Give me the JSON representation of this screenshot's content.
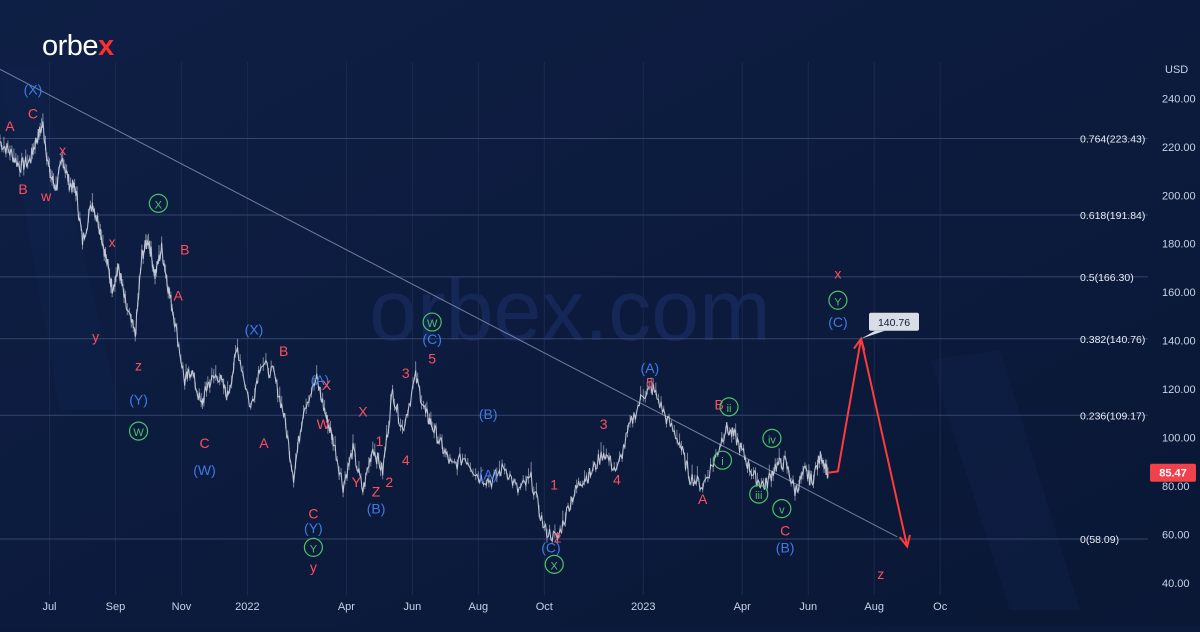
{
  "brand": {
    "logo_text": "orbe",
    "logo_accent": "x",
    "watermark": "orbex.com"
  },
  "chart_data": {
    "type": "line",
    "instrument_unit": "USD",
    "ylim": [
      35,
      255
    ],
    "xlim": [
      0,
      34.8
    ],
    "y_ticks": [
      40,
      60,
      80,
      100,
      120,
      140,
      160,
      180,
      200,
      220,
      240
    ],
    "y_tick_labels": [
      "40.00",
      "60.00",
      "80.00",
      "100.00",
      "120.00",
      "140.00",
      "160.00",
      "180.00",
      "200.00",
      "220.00",
      "240.00"
    ],
    "x_ticks": [
      {
        "label": "Jul",
        "t": 1.5
      },
      {
        "label": "Sep",
        "t": 3.5
      },
      {
        "label": "Nov",
        "t": 5.5
      },
      {
        "label": "2022",
        "t": 7.5
      },
      {
        "label": "Apr",
        "t": 10.5
      },
      {
        "label": "Jun",
        "t": 12.5
      },
      {
        "label": "Aug",
        "t": 14.5
      },
      {
        "label": "Oct",
        "t": 16.5
      },
      {
        "label": "2023",
        "t": 19.5
      },
      {
        "label": "Apr",
        "t": 22.5
      },
      {
        "label": "Jun",
        "t": 24.5
      },
      {
        "label": "Aug",
        "t": 26.5
      },
      {
        "label": "Oc",
        "t": 28.5
      }
    ],
    "price_series": {
      "name": "",
      "t": [
        0,
        0.3,
        0.6,
        0.9,
        1.1,
        1.3,
        1.5,
        1.7,
        1.9,
        2.1,
        2.3,
        2.5,
        2.8,
        3.0,
        3.2,
        3.4,
        3.6,
        3.8,
        4.1,
        4.3,
        4.5,
        4.7,
        4.9,
        5.1,
        5.3,
        5.6,
        5.8,
        6.1,
        6.3,
        6.6,
        6.9,
        7.2,
        7.6,
        7.9,
        8.3,
        8.6,
        8.9,
        9.2,
        9.6,
        9.9,
        10.1,
        10.4,
        10.7,
        11.0,
        11.3,
        11.6,
        11.9,
        12.2,
        12.6,
        12.9,
        13.1,
        13.4,
        13.7,
        14.1,
        14.5,
        14.9,
        15.3,
        15.7,
        16.1,
        16.5,
        16.9,
        17.3,
        17.6,
        17.9,
        18.3,
        18.7,
        19.1,
        19.5,
        19.8,
        20.2,
        20.6,
        20.9,
        21.3,
        21.7,
        22.0,
        22.3,
        22.6,
        22.9,
        23.2,
        23.5,
        23.8,
        24.1,
        24.4,
        24.6,
        24.9,
        25.1
      ],
      "y": [
        222,
        218,
        212,
        214,
        223,
        229,
        209,
        203,
        215,
        205,
        202,
        181,
        197,
        188,
        175,
        162,
        170,
        155,
        142,
        175,
        182,
        167,
        178,
        162,
        148,
        123,
        128,
        113,
        122,
        126,
        117,
        137,
        112,
        131,
        126,
        110,
        84,
        112,
        124,
        108,
        99,
        80,
        95,
        78,
        96,
        86,
        119,
        103,
        125,
        110,
        105,
        96,
        88,
        92,
        84,
        82,
        88,
        78,
        83,
        62,
        58,
        74,
        82,
        85,
        94,
        86,
        105,
        118,
        120,
        108,
        98,
        84,
        80,
        92,
        104,
        100,
        91,
        83,
        80,
        88,
        90,
        78,
        86,
        82,
        93,
        85
      ]
    },
    "projection": {
      "t": [
        25.1,
        25.4,
        26.1,
        27.5
      ],
      "y": [
        85.47,
        86,
        140.76,
        55
      ],
      "color": "#ff3b3b"
    },
    "trendline": {
      "t": [
        0,
        27.2
      ],
      "y": [
        252,
        59
      ],
      "color": "#9aa7c3"
    },
    "fib_levels": [
      {
        "label": "0.764(223.43)",
        "y": 223.43
      },
      {
        "label": "0.618(191.84)",
        "y": 191.84
      },
      {
        "label": "0.5(166.30)",
        "y": 166.3
      },
      {
        "label": "0.382(140.76)",
        "y": 140.76
      },
      {
        "label": "0.236(109.17)",
        "y": 109.17
      },
      {
        "label": "0(58.09)",
        "y": 58.09
      }
    ],
    "price_tags": [
      {
        "label": "85.47",
        "y": 85.47,
        "style": "price",
        "color": "#f0414c"
      },
      {
        "label": "140.76",
        "y": 140.76,
        "style": "callout",
        "color": "#d9dde6"
      }
    ],
    "wave_labels": [
      {
        "text": "(X)",
        "t": 1.0,
        "y": 242,
        "color": "#3d7be8",
        "circle": false
      },
      {
        "text": "A",
        "t": 0.3,
        "y": 227,
        "color": "#ff4f5e",
        "circle": false
      },
      {
        "text": "C",
        "t": 1.0,
        "y": 232,
        "color": "#ff4f5e",
        "circle": false
      },
      {
        "text": "x",
        "t": 1.9,
        "y": 217,
        "color": "#ff4f5e",
        "circle": false
      },
      {
        "text": "B",
        "t": 0.7,
        "y": 201,
        "color": "#ff4f5e",
        "circle": false
      },
      {
        "text": "w",
        "t": 1.4,
        "y": 198,
        "color": "#ff4f5e",
        "circle": false
      },
      {
        "text": "x",
        "t": 3.4,
        "y": 179,
        "color": "#ff4f5e",
        "circle": false
      },
      {
        "text": "X",
        "t": 4.8,
        "y": 195,
        "color": "#4ec26a",
        "circle": true
      },
      {
        "text": "B",
        "t": 5.6,
        "y": 176,
        "color": "#ff4f5e",
        "circle": false
      },
      {
        "text": "A",
        "t": 5.4,
        "y": 157,
        "color": "#ff4f5e",
        "circle": false
      },
      {
        "text": "y",
        "t": 2.9,
        "y": 140,
        "color": "#ff4f5e",
        "circle": false
      },
      {
        "text": "z",
        "t": 4.2,
        "y": 128,
        "color": "#ff4f5e",
        "circle": false
      },
      {
        "text": "(Y)",
        "t": 4.2,
        "y": 114,
        "color": "#3d7be8",
        "circle": false
      },
      {
        "text": "W",
        "t": 4.2,
        "y": 101,
        "color": "#4ec26a",
        "circle": true
      },
      {
        "text": "(X)",
        "t": 7.7,
        "y": 143,
        "color": "#3d7be8",
        "circle": false
      },
      {
        "text": "B",
        "t": 8.6,
        "y": 134,
        "color": "#ff4f5e",
        "circle": false
      },
      {
        "text": "C",
        "t": 6.2,
        "y": 96,
        "color": "#ff4f5e",
        "circle": false
      },
      {
        "text": "(W)",
        "t": 6.2,
        "y": 85,
        "color": "#3d7be8",
        "circle": false
      },
      {
        "text": "A",
        "t": 8.0,
        "y": 96,
        "color": "#ff4f5e",
        "circle": false
      },
      {
        "text": "(A)",
        "t": 9.7,
        "y": 122,
        "color": "#3d7be8",
        "circle": false
      },
      {
        "text": "X",
        "t": 9.9,
        "y": 120,
        "color": "#ff4f5e",
        "circle": false
      },
      {
        "text": "W",
        "t": 9.8,
        "y": 104,
        "color": "#ff4f5e",
        "circle": false
      },
      {
        "text": "X",
        "t": 11.0,
        "y": 109,
        "color": "#ff4f5e",
        "circle": false
      },
      {
        "text": "1",
        "t": 11.5,
        "y": 97,
        "color": "#ff4f5e",
        "circle": false
      },
      {
        "text": "Y",
        "t": 10.8,
        "y": 80,
        "color": "#ff4f5e",
        "circle": false
      },
      {
        "text": "Z",
        "t": 11.4,
        "y": 76,
        "color": "#ff4f5e",
        "circle": false
      },
      {
        "text": "2",
        "t": 11.8,
        "y": 80,
        "color": "#ff4f5e",
        "circle": false
      },
      {
        "text": "(B)",
        "t": 11.4,
        "y": 69,
        "color": "#3d7be8",
        "circle": false
      },
      {
        "text": "4",
        "t": 12.3,
        "y": 89,
        "color": "#ff4f5e",
        "circle": false
      },
      {
        "text": "3",
        "t": 12.3,
        "y": 125,
        "color": "#ff4f5e",
        "circle": false
      },
      {
        "text": "W",
        "t": 13.1,
        "y": 146,
        "color": "#4ec26a",
        "circle": true
      },
      {
        "text": "(C)",
        "t": 13.1,
        "y": 139,
        "color": "#3d7be8",
        "circle": false
      },
      {
        "text": "5",
        "t": 13.1,
        "y": 131,
        "color": "#ff4f5e",
        "circle": false
      },
      {
        "text": "(B)",
        "t": 14.8,
        "y": 108,
        "color": "#3d7be8",
        "circle": false
      },
      {
        "text": "(A)",
        "t": 14.8,
        "y": 83,
        "color": "#3d7be8",
        "circle": false
      },
      {
        "text": "1",
        "t": 16.8,
        "y": 79,
        "color": "#ff4f5e",
        "circle": false
      },
      {
        "text": "C",
        "t": 9.5,
        "y": 67,
        "color": "#ff4f5e",
        "circle": false
      },
      {
        "text": "(Y)",
        "t": 9.5,
        "y": 61,
        "color": "#3d7be8",
        "circle": false
      },
      {
        "text": "Y",
        "t": 9.5,
        "y": 53,
        "color": "#4ec26a",
        "circle": true
      },
      {
        "text": "y",
        "t": 9.5,
        "y": 45,
        "color": "#ff4f5e",
        "circle": false
      },
      {
        "text": "2",
        "t": 16.9,
        "y": 57,
        "color": "#ff4f5e",
        "circle": false
      },
      {
        "text": "(C)",
        "t": 16.7,
        "y": 53,
        "color": "#3d7be8",
        "circle": false
      },
      {
        "text": "X",
        "t": 16.8,
        "y": 46,
        "color": "#4ec26a",
        "circle": true
      },
      {
        "text": "3",
        "t": 18.3,
        "y": 104,
        "color": "#ff4f5e",
        "circle": false
      },
      {
        "text": "4",
        "t": 18.7,
        "y": 81,
        "color": "#ff4f5e",
        "circle": false
      },
      {
        "text": "(A)",
        "t": 19.7,
        "y": 127,
        "color": "#3d7be8",
        "circle": false
      },
      {
        "text": "5",
        "t": 19.7,
        "y": 121,
        "color": "#ff4f5e",
        "circle": false
      },
      {
        "text": "B",
        "t": 21.8,
        "y": 112,
        "color": "#ff4f5e",
        "circle": false
      },
      {
        "text": "ii",
        "t": 22.1,
        "y": 111,
        "color": "#4ec26a",
        "circle": true
      },
      {
        "text": "i",
        "t": 21.9,
        "y": 89,
        "color": "#4ec26a",
        "circle": true
      },
      {
        "text": "A",
        "t": 21.3,
        "y": 73,
        "color": "#ff4f5e",
        "circle": false
      },
      {
        "text": "iii",
        "t": 23.0,
        "y": 75,
        "color": "#4ec26a",
        "circle": true
      },
      {
        "text": "iv",
        "t": 23.4,
        "y": 98,
        "color": "#4ec26a",
        "circle": true
      },
      {
        "text": "v",
        "t": 23.7,
        "y": 69,
        "color": "#4ec26a",
        "circle": true
      },
      {
        "text": "C",
        "t": 23.8,
        "y": 60,
        "color": "#ff4f5e",
        "circle": false
      },
      {
        "text": "(B)",
        "t": 23.8,
        "y": 53,
        "color": "#3d7be8",
        "circle": false
      },
      {
        "text": "x",
        "t": 25.4,
        "y": 166,
        "color": "#ff4f5e",
        "circle": false
      },
      {
        "text": "Y",
        "t": 25.4,
        "y": 155,
        "color": "#4ec26a",
        "circle": true
      },
      {
        "text": "(C)",
        "t": 25.4,
        "y": 146,
        "color": "#3d7be8",
        "circle": false
      },
      {
        "text": "z",
        "t": 26.7,
        "y": 42,
        "color": "#ff4f5e",
        "circle": false
      }
    ],
    "colors": {
      "background": "#0b1a3a",
      "price": "#d6dbe6",
      "grid": "#1a2a4d",
      "fib_line": "#33466e",
      "text": "#c9d3e6"
    }
  }
}
